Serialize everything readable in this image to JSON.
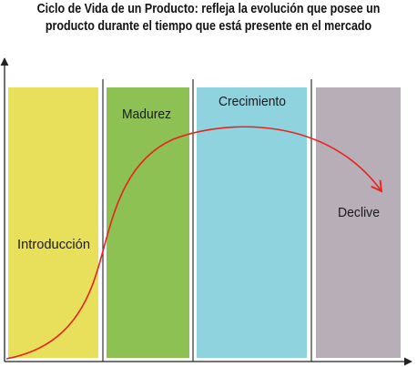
{
  "title": {
    "line1": "Ciclo de Vida de un Producto: refleja la evolución que posee un",
    "line2": "producto durante el tiempo que está presente en el mercado"
  },
  "stages": [
    {
      "id": "introduccion",
      "label": "Introducción",
      "color": "#e8e05a"
    },
    {
      "id": "madurez",
      "label": "Madurez",
      "color": "#8dc153"
    },
    {
      "id": "crecimiento",
      "label": "Crecimiento",
      "color": "#8fd3df"
    },
    {
      "id": "declive",
      "label": "Declive",
      "color": "#b7aeb8"
    }
  ],
  "colors": {
    "curve": "#e8231e",
    "axis": "#222222",
    "divider": "#333333"
  }
}
